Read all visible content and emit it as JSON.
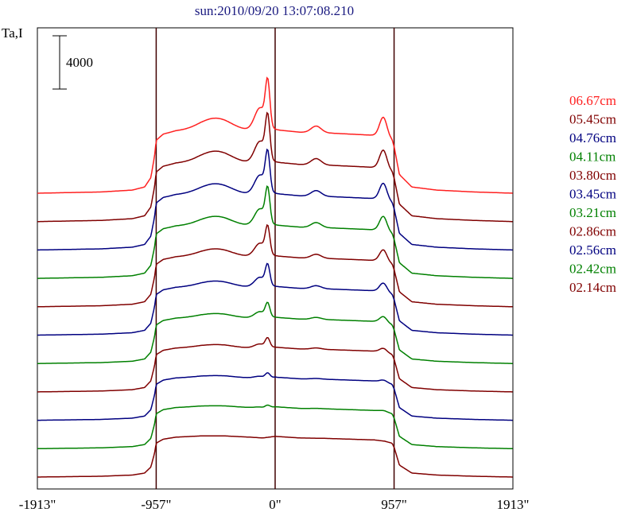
{
  "chart_data": {
    "type": "line",
    "title": "sun:2010/09/20 13:07:08.210",
    "ylabel": "Ta,I",
    "scale_bar_label": "4000",
    "x_tick_labels": [
      "-1913\"",
      "-957\"",
      "0\"",
      "957\"",
      "1913\""
    ],
    "x_ticks": [
      -1913,
      -957,
      0,
      957,
      1913
    ],
    "xlim": [
      -1913,
      1913
    ],
    "vertical_lines_at": [
      -957,
      0,
      957
    ],
    "grid": false,
    "legend_position": "right",
    "series": [
      {
        "name": "06.67cm",
        "color": "#ff2020",
        "offset": 10,
        "amplitude": 2.06,
        "peak": 1.0
      },
      {
        "name": "05.45cm",
        "color": "#800000",
        "offset": 9,
        "amplitude": 1.93,
        "peak": 0.95
      },
      {
        "name": "04.76cm",
        "color": "#000080",
        "offset": 8,
        "amplitude": 1.83,
        "peak": 0.85
      },
      {
        "name": "04.11cm",
        "color": "#008000",
        "offset": 7,
        "amplitude": 1.73,
        "peak": 0.75
      },
      {
        "name": "03.80cm",
        "color": "#800000",
        "offset": 6,
        "amplitude": 1.65,
        "peak": 0.6
      },
      {
        "name": "03.45cm",
        "color": "#000080",
        "offset": 5,
        "amplitude": 1.58,
        "peak": 0.45
      },
      {
        "name": "03.21cm",
        "color": "#008000",
        "offset": 4,
        "amplitude": 1.5,
        "peak": 0.3
      },
      {
        "name": "02.86cm",
        "color": "#800000",
        "offset": 3,
        "amplitude": 1.45,
        "peak": 0.2
      },
      {
        "name": "02.56cm",
        "color": "#000080",
        "offset": 2,
        "amplitude": 1.4,
        "peak": 0.1
      },
      {
        "name": "02.42cm",
        "color": "#008000",
        "offset": 1,
        "amplitude": 1.36,
        "peak": 0.05
      },
      {
        "name": "02.14cm",
        "color": "#800000",
        "offset": 0,
        "amplitude": 1.32,
        "peak": 0.0
      }
    ],
    "profile_shape": {
      "x": [
        -1913,
        -1400,
        -1150,
        -1050,
        -1000,
        -970,
        -957,
        -900,
        -800,
        -600,
        -400,
        -200,
        -100,
        -50,
        0,
        100,
        200,
        400,
        600,
        800,
        880,
        940,
        957,
        1000,
        1100,
        1300,
        1600,
        1913
      ],
      "y": [
        0.0,
        0.02,
        0.05,
        0.1,
        0.25,
        0.6,
        0.85,
        0.95,
        1.0,
        1.03,
        1.03,
        1.0,
        0.98,
        1.0,
        1.02,
        1.0,
        0.98,
        0.97,
        0.95,
        0.93,
        0.9,
        0.85,
        0.75,
        0.3,
        0.1,
        0.05,
        0.02,
        0.0
      ]
    }
  }
}
